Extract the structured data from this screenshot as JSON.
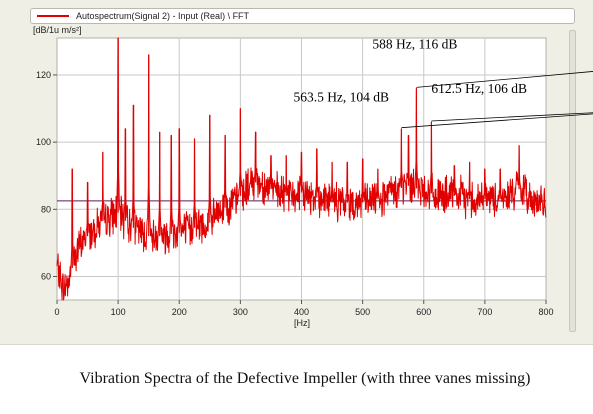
{
  "legend": {
    "label": "Autospectrum(Signal 2) - Input (Real) \\ FFT"
  },
  "caption": "Vibration Spectra of the Defective Impeller (with three vanes missing)",
  "colors": {
    "series": "#e00000",
    "reference_line": "#5a1a5a",
    "plot_bg": "#ffffff",
    "panel_bg": "#efefe6"
  },
  "chart_data": {
    "type": "line",
    "title": "",
    "xlabel": "[Hz]",
    "ylabel": "[dB/1u m/s²]",
    "xlim": [
      0,
      800
    ],
    "ylim": [
      53,
      131
    ],
    "x_ticks": [
      0,
      100,
      200,
      300,
      400,
      500,
      600,
      700,
      800
    ],
    "y_ticks": [
      60,
      80,
      100,
      120
    ],
    "grid": true,
    "legend_position": "top",
    "reference_line_y": 82.5,
    "series": [
      {
        "name": "Autospectrum(Signal 2) - Input (Real) \\ FFT",
        "baseline": [
          [
            0,
            63
          ],
          [
            10,
            56
          ],
          [
            20,
            59
          ],
          [
            30,
            66
          ],
          [
            40,
            70
          ],
          [
            50,
            72
          ],
          [
            60,
            74
          ],
          [
            70,
            76
          ],
          [
            80,
            77
          ],
          [
            90,
            78
          ],
          [
            100,
            79
          ],
          [
            110,
            77
          ],
          [
            120,
            75
          ],
          [
            130,
            74
          ],
          [
            140,
            73
          ],
          [
            150,
            72
          ],
          [
            160,
            72
          ],
          [
            170,
            72
          ],
          [
            180,
            72
          ],
          [
            190,
            73
          ],
          [
            200,
            73
          ],
          [
            210,
            74
          ],
          [
            220,
            74
          ],
          [
            230,
            75
          ],
          [
            240,
            75
          ],
          [
            250,
            76
          ],
          [
            260,
            78
          ],
          [
            270,
            80
          ],
          [
            280,
            81
          ],
          [
            290,
            82
          ],
          [
            300,
            84
          ],
          [
            310,
            86
          ],
          [
            320,
            88
          ],
          [
            330,
            88
          ],
          [
            340,
            87
          ],
          [
            350,
            86
          ],
          [
            360,
            85
          ],
          [
            370,
            84
          ],
          [
            380,
            84
          ],
          [
            390,
            84
          ],
          [
            400,
            85
          ],
          [
            410,
            84
          ],
          [
            420,
            84
          ],
          [
            430,
            83
          ],
          [
            440,
            83
          ],
          [
            450,
            82
          ],
          [
            460,
            82
          ],
          [
            470,
            82
          ],
          [
            480,
            82
          ],
          [
            490,
            82
          ],
          [
            500,
            82
          ],
          [
            510,
            82
          ],
          [
            520,
            83
          ],
          [
            530,
            83
          ],
          [
            540,
            84
          ],
          [
            550,
            85
          ],
          [
            560,
            86
          ],
          [
            570,
            87
          ],
          [
            580,
            87
          ],
          [
            590,
            86
          ],
          [
            600,
            86
          ],
          [
            610,
            85
          ],
          [
            620,
            84
          ],
          [
            630,
            84
          ],
          [
            640,
            84
          ],
          [
            650,
            84
          ],
          [
            660,
            84
          ],
          [
            670,
            83
          ],
          [
            680,
            83
          ],
          [
            690,
            83
          ],
          [
            700,
            83
          ],
          [
            710,
            83
          ],
          [
            720,
            83
          ],
          [
            730,
            83
          ],
          [
            740,
            84
          ],
          [
            750,
            86
          ],
          [
            760,
            86
          ],
          [
            770,
            84
          ],
          [
            780,
            83
          ],
          [
            790,
            82
          ],
          [
            800,
            81
          ]
        ],
        "peaks": [
          [
            25,
            92
          ],
          [
            50,
            88
          ],
          [
            75,
            97
          ],
          [
            100,
            131
          ],
          [
            112,
            104
          ],
          [
            125,
            111
          ],
          [
            150,
            126
          ],
          [
            168,
            103
          ],
          [
            187,
            102
          ],
          [
            200,
            104
          ],
          [
            225,
            101
          ],
          [
            250,
            108
          ],
          [
            275,
            102
          ],
          [
            300,
            110
          ],
          [
            325,
            103
          ],
          [
            350,
            96
          ],
          [
            375,
            96
          ],
          [
            400,
            97
          ],
          [
            425,
            98
          ],
          [
            450,
            94
          ],
          [
            475,
            94
          ],
          [
            500,
            95
          ],
          [
            525,
            92
          ],
          [
            563.5,
            104
          ],
          [
            575,
            102
          ],
          [
            588,
            116
          ],
          [
            612.5,
            106
          ],
          [
            650,
            93
          ],
          [
            675,
            94
          ],
          [
            700,
            92
          ],
          [
            725,
            92
          ],
          [
            756,
            99
          ]
        ]
      }
    ],
    "annotations": [
      {
        "text": "588 Hz, 116 dB",
        "x": 588,
        "y": 116
      },
      {
        "text": "563.5 Hz, 104 dB",
        "x": 563.5,
        "y": 104
      },
      {
        "text": "612.5 Hz, 106 dB",
        "x": 612.5,
        "y": 106
      }
    ]
  }
}
